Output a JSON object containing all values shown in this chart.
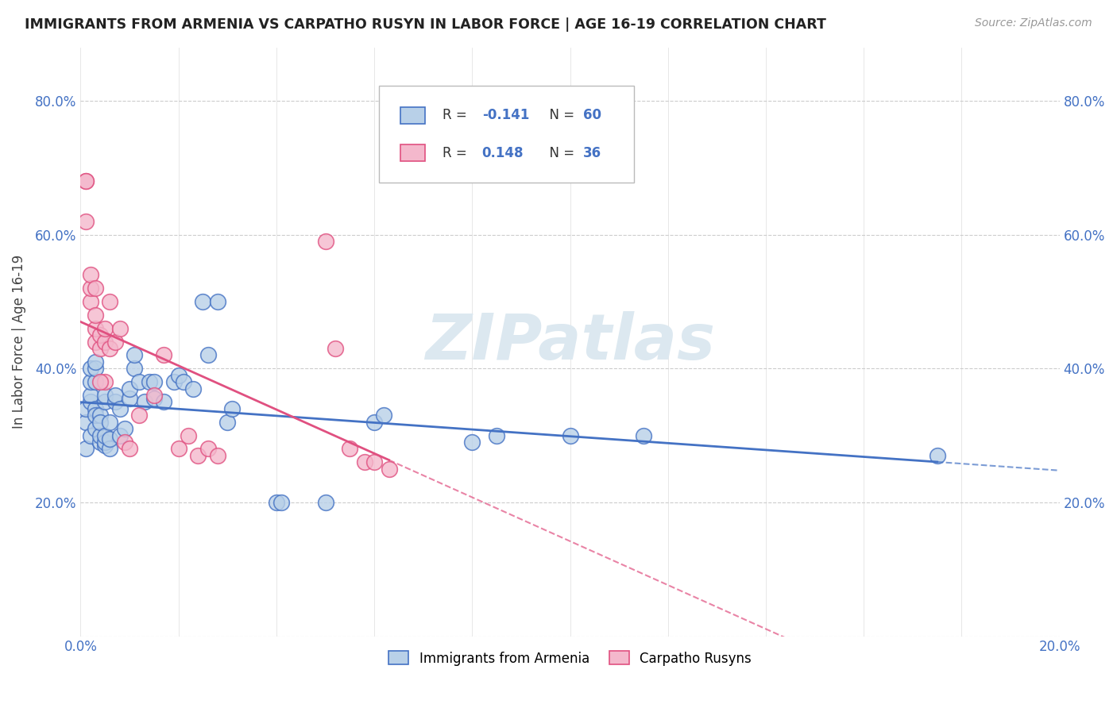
{
  "title": "IMMIGRANTS FROM ARMENIA VS CARPATHO RUSYN IN LABOR FORCE | AGE 16-19 CORRELATION CHART",
  "source": "Source: ZipAtlas.com",
  "ylabel": "In Labor Force | Age 16-19",
  "xlim": [
    0.0,
    0.2
  ],
  "ylim": [
    0.0,
    0.88
  ],
  "xticks": [
    0.0,
    0.02,
    0.04,
    0.06,
    0.08,
    0.1,
    0.12,
    0.14,
    0.16,
    0.18,
    0.2
  ],
  "yticks": [
    0.0,
    0.2,
    0.4,
    0.6,
    0.8
  ],
  "xticklabels": [
    "0.0%",
    "",
    "",
    "",
    "",
    "",
    "",
    "",
    "",
    "",
    "20.0%"
  ],
  "yticklabels": [
    "",
    "20.0%",
    "40.0%",
    "60.0%",
    "80.0%"
  ],
  "legend_r_armenia": "-0.141",
  "legend_n_armenia": "60",
  "legend_r_carpatho": "0.148",
  "legend_n_carpatho": "36",
  "color_armenia_fill": "#b8d0e8",
  "color_armenia_edge": "#4472c4",
  "color_carpatho_fill": "#f4b8cc",
  "color_carpatho_edge": "#e05080",
  "color_armenia_line": "#4472c4",
  "color_carpatho_line": "#e05080",
  "watermark": "ZIPatlas",
  "armenia_x": [
    0.001,
    0.001,
    0.001,
    0.002,
    0.002,
    0.002,
    0.002,
    0.002,
    0.003,
    0.003,
    0.003,
    0.003,
    0.003,
    0.003,
    0.004,
    0.004,
    0.004,
    0.004,
    0.005,
    0.005,
    0.005,
    0.005,
    0.005,
    0.006,
    0.006,
    0.006,
    0.007,
    0.007,
    0.008,
    0.008,
    0.009,
    0.01,
    0.01,
    0.011,
    0.011,
    0.012,
    0.013,
    0.014,
    0.015,
    0.015,
    0.017,
    0.019,
    0.02,
    0.021,
    0.023,
    0.025,
    0.026,
    0.028,
    0.03,
    0.031,
    0.04,
    0.041,
    0.05,
    0.06,
    0.062,
    0.08,
    0.085,
    0.1,
    0.115,
    0.175
  ],
  "armenia_y": [
    0.32,
    0.28,
    0.34,
    0.3,
    0.35,
    0.36,
    0.38,
    0.4,
    0.34,
    0.31,
    0.33,
    0.38,
    0.4,
    0.41,
    0.33,
    0.29,
    0.3,
    0.32,
    0.285,
    0.29,
    0.3,
    0.35,
    0.36,
    0.28,
    0.295,
    0.32,
    0.35,
    0.36,
    0.3,
    0.34,
    0.31,
    0.355,
    0.37,
    0.4,
    0.42,
    0.38,
    0.35,
    0.38,
    0.355,
    0.38,
    0.35,
    0.38,
    0.39,
    0.38,
    0.37,
    0.5,
    0.42,
    0.5,
    0.32,
    0.34,
    0.2,
    0.2,
    0.2,
    0.32,
    0.33,
    0.29,
    0.3,
    0.3,
    0.3,
    0.27
  ],
  "carpatho_x": [
    0.001,
    0.001,
    0.002,
    0.002,
    0.002,
    0.003,
    0.003,
    0.003,
    0.004,
    0.004,
    0.005,
    0.005,
    0.005,
    0.006,
    0.006,
    0.007,
    0.008,
    0.009,
    0.01,
    0.012,
    0.015,
    0.017,
    0.02,
    0.022,
    0.024,
    0.026,
    0.028,
    0.05,
    0.052,
    0.055,
    0.058,
    0.06,
    0.063,
    0.001,
    0.003,
    0.004
  ],
  "carpatho_y": [
    0.68,
    0.68,
    0.5,
    0.52,
    0.54,
    0.44,
    0.46,
    0.48,
    0.43,
    0.45,
    0.44,
    0.46,
    0.38,
    0.43,
    0.5,
    0.44,
    0.46,
    0.29,
    0.28,
    0.33,
    0.36,
    0.42,
    0.28,
    0.3,
    0.27,
    0.28,
    0.27,
    0.59,
    0.43,
    0.28,
    0.26,
    0.26,
    0.25,
    0.62,
    0.52,
    0.38
  ]
}
